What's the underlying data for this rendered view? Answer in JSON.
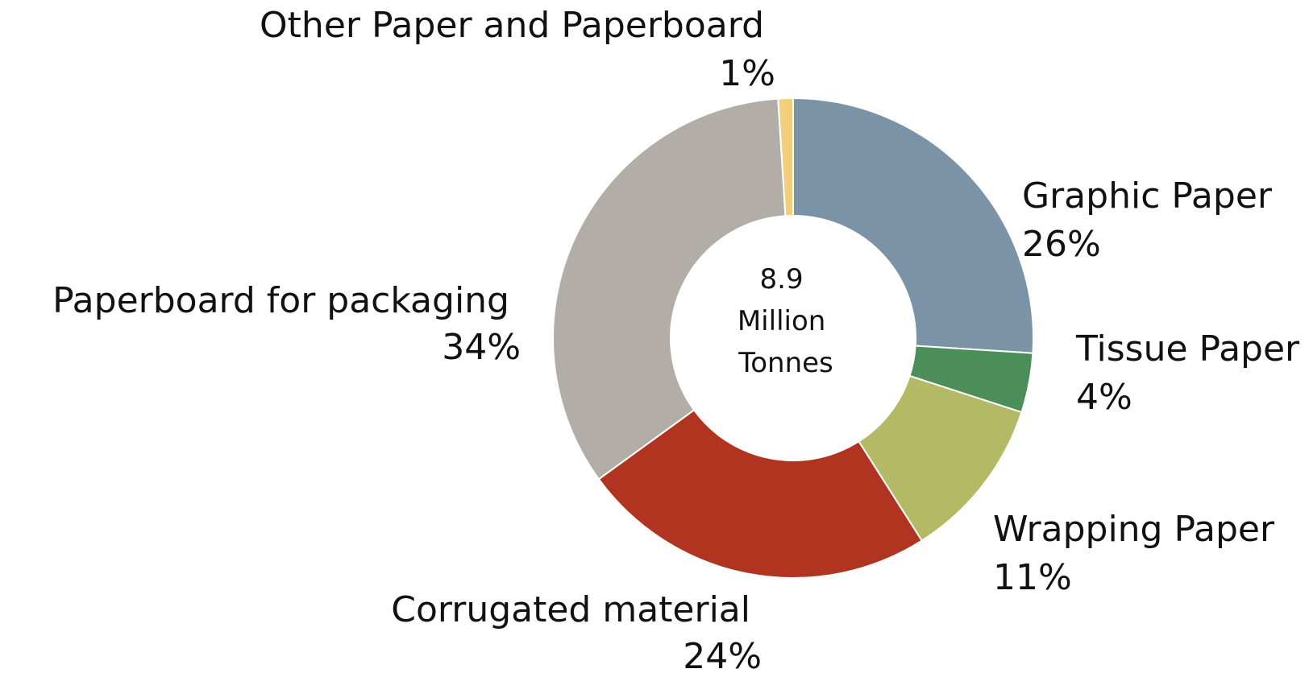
{
  "chart_data": {
    "type": "pie",
    "donut": true,
    "center_text": [
      "8.9",
      "Million",
      "Tonnes"
    ],
    "slices": [
      {
        "label": "Graphic Paper",
        "value": 26,
        "value_label": "26%",
        "color": "#7b93a7"
      },
      {
        "label": "Tissue Paper",
        "value": 4,
        "value_label": "4%",
        "color": "#4c8e5a"
      },
      {
        "label": "Wrapping Paper",
        "value": 11,
        "value_label": "11%",
        "color": "#b3b964"
      },
      {
        "label": "Corrugated material",
        "value": 24,
        "value_label": "24%",
        "color": "#b13421"
      },
      {
        "label": "Paperboard for packaging",
        "value": 34,
        "value_label": "34%",
        "color": "#b2ada7"
      },
      {
        "label": "Other Paper and Paperboard",
        "value": 1,
        "value_label": "1%",
        "color": "#f2d07b"
      }
    ]
  }
}
